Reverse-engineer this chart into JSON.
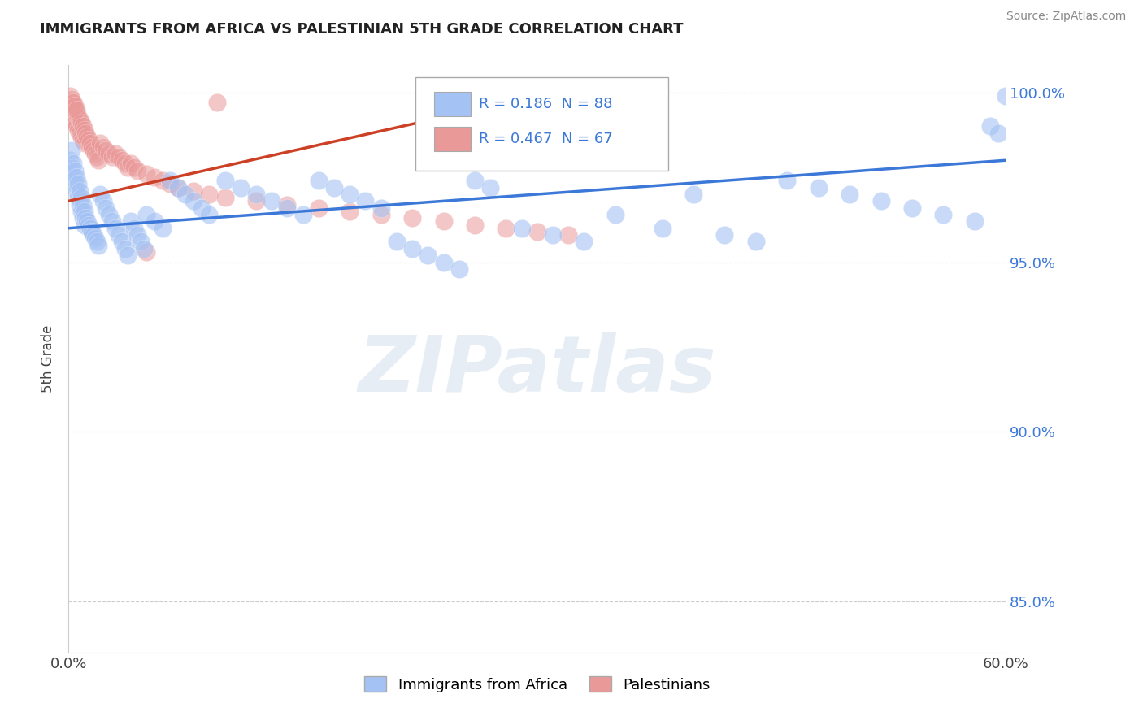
{
  "title": "IMMIGRANTS FROM AFRICA VS PALESTINIAN 5TH GRADE CORRELATION CHART",
  "source_text": "Source: ZipAtlas.com",
  "ylabel": "5th Grade",
  "xlim": [
    0.0,
    0.6
  ],
  "ylim": [
    0.835,
    1.008
  ],
  "xticks": [
    0.0,
    0.1,
    0.2,
    0.3,
    0.4,
    0.5,
    0.6
  ],
  "xtick_labels": [
    "0.0%",
    "",
    "",
    "",
    "",
    "",
    "60.0%"
  ],
  "yticks": [
    0.85,
    0.9,
    0.95,
    1.0
  ],
  "ytick_labels": [
    "85.0%",
    "90.0%",
    "95.0%",
    "100.0%"
  ],
  "blue_color": "#a4c2f4",
  "pink_color": "#ea9999",
  "blue_line_color": "#3c78d8",
  "pink_line_color": "#cc4125",
  "legend_r_blue": "R = 0.186",
  "legend_n_blue": "N = 88",
  "legend_r_pink": "R = 0.467",
  "legend_n_pink": "N = 67",
  "watermark": "ZIPatlas",
  "watermark_color": "#c8d8e8",
  "blue_scatter_x": [
    0.001,
    0.002,
    0.002,
    0.003,
    0.003,
    0.004,
    0.004,
    0.005,
    0.005,
    0.006,
    0.006,
    0.007,
    0.007,
    0.008,
    0.008,
    0.009,
    0.009,
    0.01,
    0.01,
    0.011,
    0.012,
    0.013,
    0.014,
    0.015,
    0.016,
    0.017,
    0.018,
    0.019,
    0.02,
    0.022,
    0.024,
    0.026,
    0.028,
    0.03,
    0.032,
    0.034,
    0.036,
    0.038,
    0.04,
    0.042,
    0.044,
    0.046,
    0.048,
    0.05,
    0.055,
    0.06,
    0.065,
    0.07,
    0.075,
    0.08,
    0.085,
    0.09,
    0.1,
    0.11,
    0.12,
    0.13,
    0.14,
    0.15,
    0.16,
    0.17,
    0.18,
    0.19,
    0.2,
    0.21,
    0.22,
    0.23,
    0.24,
    0.25,
    0.26,
    0.27,
    0.29,
    0.31,
    0.33,
    0.35,
    0.38,
    0.4,
    0.42,
    0.44,
    0.46,
    0.48,
    0.5,
    0.52,
    0.54,
    0.56,
    0.58,
    0.59,
    0.595,
    0.6
  ],
  "blue_scatter_y": [
    0.98,
    0.978,
    0.983,
    0.975,
    0.979,
    0.973,
    0.977,
    0.971,
    0.975,
    0.969,
    0.973,
    0.967,
    0.971,
    0.965,
    0.969,
    0.963,
    0.967,
    0.961,
    0.965,
    0.963,
    0.962,
    0.961,
    0.96,
    0.959,
    0.958,
    0.957,
    0.956,
    0.955,
    0.97,
    0.968,
    0.966,
    0.964,
    0.962,
    0.96,
    0.958,
    0.956,
    0.954,
    0.952,
    0.962,
    0.96,
    0.958,
    0.956,
    0.954,
    0.964,
    0.962,
    0.96,
    0.974,
    0.972,
    0.97,
    0.968,
    0.966,
    0.964,
    0.974,
    0.972,
    0.97,
    0.968,
    0.966,
    0.964,
    0.974,
    0.972,
    0.97,
    0.968,
    0.966,
    0.956,
    0.954,
    0.952,
    0.95,
    0.948,
    0.974,
    0.972,
    0.96,
    0.958,
    0.956,
    0.964,
    0.96,
    0.97,
    0.958,
    0.956,
    0.974,
    0.972,
    0.97,
    0.968,
    0.966,
    0.964,
    0.962,
    0.99,
    0.988,
    0.999
  ],
  "pink_scatter_x": [
    0.001,
    0.002,
    0.002,
    0.003,
    0.003,
    0.004,
    0.004,
    0.005,
    0.005,
    0.006,
    0.006,
    0.007,
    0.007,
    0.008,
    0.008,
    0.009,
    0.009,
    0.01,
    0.01,
    0.011,
    0.012,
    0.013,
    0.014,
    0.015,
    0.016,
    0.017,
    0.018,
    0.019,
    0.02,
    0.022,
    0.024,
    0.026,
    0.028,
    0.03,
    0.032,
    0.034,
    0.036,
    0.038,
    0.04,
    0.042,
    0.044,
    0.05,
    0.055,
    0.06,
    0.065,
    0.07,
    0.08,
    0.09,
    0.1,
    0.12,
    0.14,
    0.16,
    0.18,
    0.2,
    0.22,
    0.24,
    0.26,
    0.28,
    0.3,
    0.32,
    0.001,
    0.002,
    0.003,
    0.004,
    0.005,
    0.05,
    0.095
  ],
  "pink_scatter_y": [
    0.995,
    0.997,
    0.993,
    0.996,
    0.992,
    0.995,
    0.991,
    0.994,
    0.99,
    0.993,
    0.989,
    0.992,
    0.988,
    0.991,
    0.987,
    0.99,
    0.986,
    0.989,
    0.985,
    0.988,
    0.987,
    0.986,
    0.985,
    0.984,
    0.983,
    0.982,
    0.981,
    0.98,
    0.985,
    0.984,
    0.983,
    0.982,
    0.981,
    0.982,
    0.981,
    0.98,
    0.979,
    0.978,
    0.979,
    0.978,
    0.977,
    0.976,
    0.975,
    0.974,
    0.973,
    0.972,
    0.971,
    0.97,
    0.969,
    0.968,
    0.967,
    0.966,
    0.965,
    0.964,
    0.963,
    0.962,
    0.961,
    0.96,
    0.959,
    0.958,
    0.999,
    0.998,
    0.997,
    0.996,
    0.995,
    0.953,
    0.997
  ],
  "blue_trend_x": [
    0.0,
    0.6
  ],
  "blue_trend_y": [
    0.96,
    0.98
  ],
  "pink_trend_x": [
    0.0,
    0.32
  ],
  "pink_trend_y": [
    0.968,
    1.001
  ]
}
